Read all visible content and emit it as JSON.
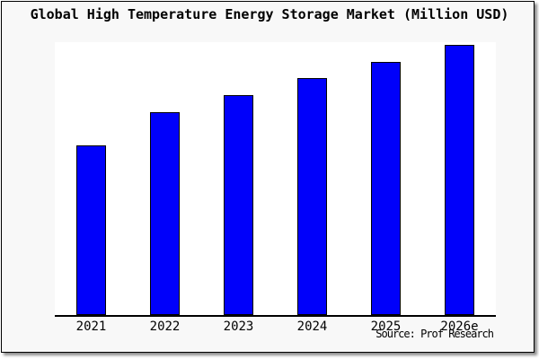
{
  "header": {
    "title": "Global High Temperature Energy Storage Market (Million USD)"
  },
  "footer": {
    "source_label": "Source: Prof Research"
  },
  "colors": {
    "canvas_bg": "#ffffff",
    "frame_bg": "#f8f8f8",
    "frame_border": "#000000",
    "frame_shadow": "#8c8c8c",
    "plot_bg": "#ffffff",
    "bar_fill": "#0000fa",
    "bar_border": "#000000",
    "axis": "#000000",
    "text": "#000000"
  },
  "chart_data": {
    "type": "bar",
    "title": "Global High Temperature Energy Storage Market (Million USD)",
    "categories": [
      "2021",
      "2022",
      "2023",
      "2024",
      "2025",
      "2026e"
    ],
    "series": [
      {
        "name": "Global High Temperature Energy Storage Market",
        "values": [
          62.8,
          75.1,
          81.4,
          87.7,
          93.7,
          100
        ]
      }
    ],
    "value_units": "relative bar height, % of tallest (2026e) bar; chart displays no y-axis, gridlines or data labels",
    "xlabel": "",
    "ylabel": "",
    "ylim": [
      0,
      100
    ],
    "grid": false,
    "legend_position": "none",
    "annotations": [
      "Source: Prof Research"
    ]
  }
}
